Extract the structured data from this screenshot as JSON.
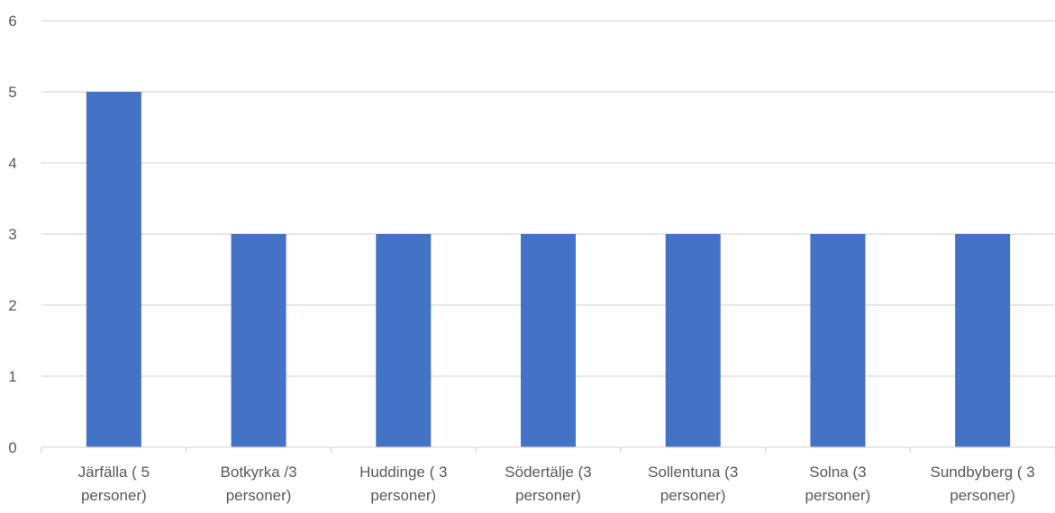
{
  "chart_data": {
    "type": "bar",
    "title": "",
    "xlabel": "",
    "ylabel": "",
    "categories": [
      [
        "Järfälla ( 5",
        "personer)"
      ],
      [
        "Botkyrka /3",
        "personer)"
      ],
      [
        "Huddinge ( 3",
        "personer)"
      ],
      [
        "Södertälje (3",
        "personer)"
      ],
      [
        "Sollentuna (3",
        "personer)"
      ],
      [
        "Solna (3",
        "personer)"
      ],
      [
        "Sundbyberg ( 3",
        "personer)"
      ]
    ],
    "values": [
      5,
      3,
      3,
      3,
      3,
      3,
      3
    ],
    "ylim": [
      0,
      6
    ],
    "yticks": [
      0,
      1,
      2,
      3,
      4,
      5,
      6
    ],
    "grid": true,
    "legend": "none",
    "colors": {
      "bar": "#4472C4",
      "grid": "#d9d9d9",
      "text": "#595959"
    }
  }
}
